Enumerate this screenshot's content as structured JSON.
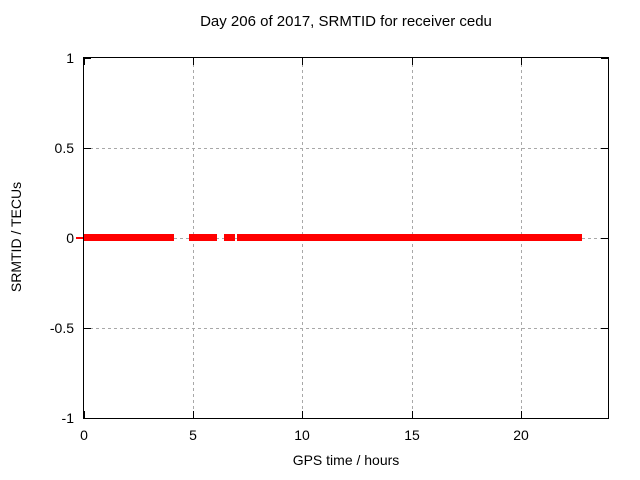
{
  "chart_data": {
    "type": "scatter",
    "title": "Day 206 of 2017, SRMTID for receiver cedu",
    "xlabel": "GPS time / hours",
    "ylabel": "SRMTID / TECUs",
    "xlim": [
      0,
      24
    ],
    "ylim": [
      -1,
      1
    ],
    "xticks": [
      0,
      5,
      10,
      15,
      20
    ],
    "yticks": [
      1,
      0.5,
      0,
      -0.5,
      -1
    ],
    "grid": true,
    "legend": "none",
    "series": [
      {
        "name": "SRMTID",
        "color": "#ff0000",
        "marker": "square",
        "y_value": 0,
        "segments_hours": [
          [
            0,
            4.11
          ],
          [
            4.79,
            6.11
          ],
          [
            6.39,
            6.93
          ],
          [
            7.03,
            22.81
          ]
        ]
      }
    ],
    "colors": {
      "background": "#ffffff",
      "border": "#000000",
      "grid": "#a8a8a8",
      "text": "#000000",
      "data": "#ff0000"
    }
  }
}
